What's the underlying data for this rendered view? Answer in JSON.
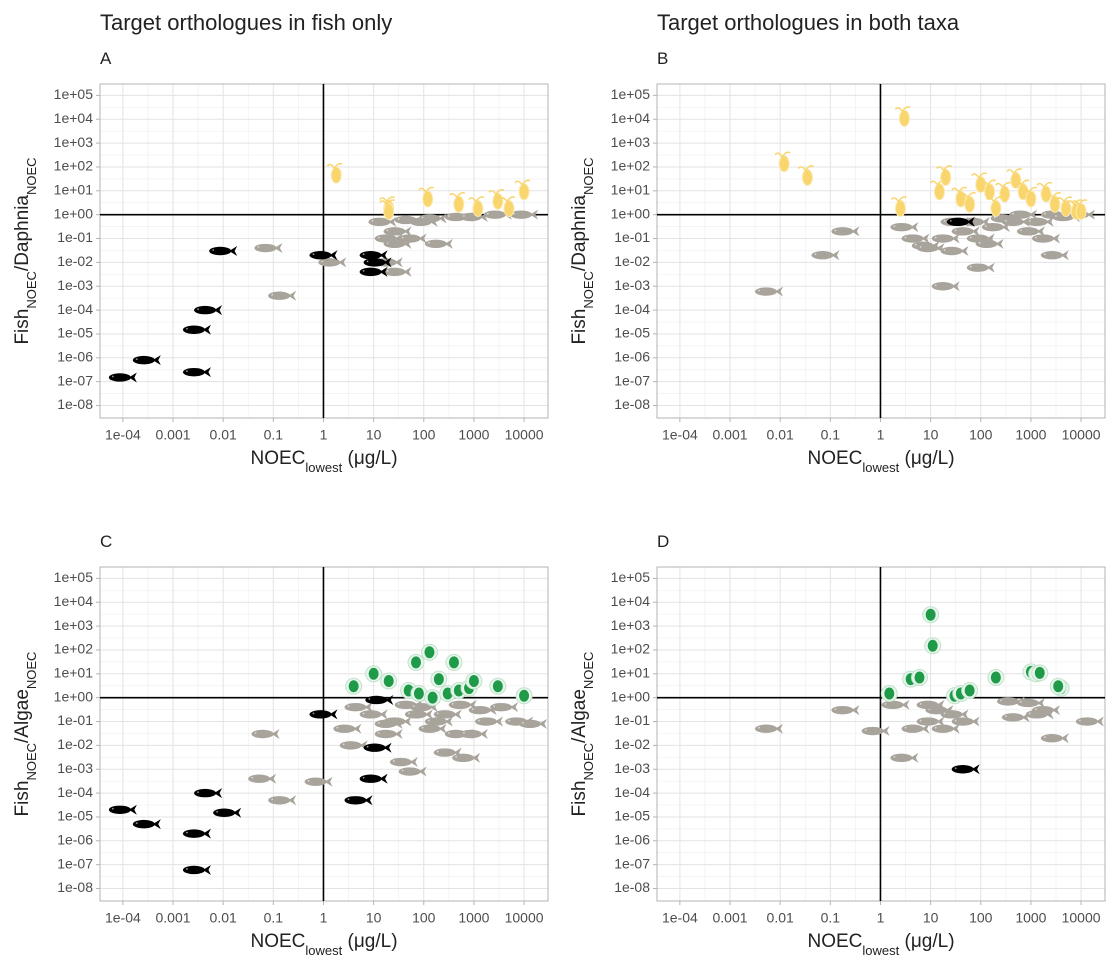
{
  "column_titles": [
    "Target orthologues in fish only",
    "Target orthologues in both taxa"
  ],
  "chart_data": [
    {
      "type": "scatter",
      "panel_label": "A",
      "xlabel": [
        {
          "text": "NOEC"
        },
        {
          "text": "lowest",
          "sub": true
        },
        {
          "text": " (μg/L)"
        }
      ],
      "ylabel": [
        {
          "text": "Fish"
        },
        {
          "text": "NOEC",
          "sub": true
        },
        {
          "text": "/Daphnia"
        },
        {
          "text": "NOEC",
          "sub": true
        }
      ],
      "xlog": true,
      "ylog": true,
      "xlim": [
        3.5e-05,
        30000
      ],
      "ylim": [
        3e-09,
        300000
      ],
      "xticks": [
        {
          "value": 0.0001,
          "label": "1e-04"
        },
        0.001,
        0.01,
        0.1,
        1,
        10,
        100,
        1000,
        10000
      ],
      "yticks": [
        {
          "value": 1e-08,
          "label": "1e-08"
        },
        {
          "value": 1e-07,
          "label": "1e-07"
        },
        {
          "value": 1e-06,
          "label": "1e-06"
        },
        {
          "value": 1e-05,
          "label": "1e-05"
        },
        {
          "value": 0.0001,
          "label": "1e-04"
        },
        {
          "value": 0.001,
          "label": "1e-03"
        },
        {
          "value": 0.01,
          "label": "1e-02"
        },
        {
          "value": 0.1,
          "label": "1e-01"
        },
        {
          "value": 1,
          "label": "1e+00"
        },
        {
          "value": 10,
          "label": "1e+01"
        },
        {
          "value": 100,
          "label": "1e+02"
        },
        {
          "value": 1000,
          "label": "1e+03"
        },
        {
          "value": 10000,
          "label": "1e+04"
        },
        {
          "value": 100000,
          "label": "1e+05"
        }
      ],
      "grid": true,
      "minor_grid": true,
      "refline_x": 1,
      "refline_y": 1,
      "series": [
        {
          "marker": "fish",
          "color": "#a8a49c",
          "x": [
            0.08,
            1.5,
            0.15,
            20,
            30,
            30,
            100,
            200,
            15,
            50,
            150,
            500,
            1000,
            3000,
            10000,
            30,
            20,
            60
          ],
          "values": [
            0.04,
            0.01,
            0.0004,
            0.01,
            0.004,
            0.06,
            0.5,
            0.06,
            0.5,
            0.6,
            0.7,
            0.8,
            0.8,
            1,
            1,
            0.2,
            0.1,
            0.1
          ]
        },
        {
          "marker": "fish",
          "color": "#000000",
          "x": [
            0.01,
            1,
            10,
            12,
            10,
            0.005,
            0.003,
            0.0003,
            0.003,
            0.0001
          ],
          "values": [
            0.03,
            0.02,
            0.02,
            0.01,
            0.004,
            0.0001,
            1.5e-05,
            8e-07,
            2.5e-07,
            1.5e-07
          ]
        },
        {
          "marker": "daphnia",
          "color": "#f9d56e",
          "x": [
            1.8,
            20,
            20,
            120,
            500,
            1200,
            3000,
            5000,
            10000
          ],
          "values": [
            50,
            2,
            1.5,
            5,
            3,
            2,
            4,
            2,
            10
          ]
        }
      ]
    },
    {
      "type": "scatter",
      "panel_label": "B",
      "xlabel": [
        {
          "text": "NOEC"
        },
        {
          "text": "lowest",
          "sub": true
        },
        {
          "text": " (μg/L)"
        }
      ],
      "ylabel": [
        {
          "text": "Fish"
        },
        {
          "text": "NOEC",
          "sub": true
        },
        {
          "text": "/Daphnia"
        },
        {
          "text": "NOEC",
          "sub": true
        }
      ],
      "xlog": true,
      "ylog": true,
      "xlim": [
        3.5e-05,
        30000
      ],
      "ylim": [
        3e-09,
        300000
      ],
      "xticks": [
        {
          "value": 0.0001,
          "label": "1e-04"
        },
        0.001,
        0.01,
        0.1,
        1,
        10,
        100,
        1000,
        10000
      ],
      "yticks": [
        {
          "value": 1e-08,
          "label": "1e-08"
        },
        {
          "value": 1e-07,
          "label": "1e-07"
        },
        {
          "value": 1e-06,
          "label": "1e-06"
        },
        {
          "value": 1e-05,
          "label": "1e-05"
        },
        {
          "value": 0.0001,
          "label": "1e-04"
        },
        {
          "value": 0.001,
          "label": "1e-03"
        },
        {
          "value": 0.01,
          "label": "1e-02"
        },
        {
          "value": 0.1,
          "label": "1e-01"
        },
        {
          "value": 1,
          "label": "1e+00"
        },
        {
          "value": 10,
          "label": "1e+01"
        },
        {
          "value": 100,
          "label": "1e+02"
        },
        {
          "value": 1000,
          "label": "1e+03"
        },
        {
          "value": 10000,
          "label": "1e+04"
        },
        {
          "value": 100000,
          "label": "1e+05"
        }
      ],
      "grid": true,
      "minor_grid": true,
      "refline_x": 1,
      "refline_y": 1,
      "series": [
        {
          "marker": "fish",
          "color": "#a8a49c",
          "x": [
            0.006,
            0.08,
            0.2,
            20,
            100,
            3000,
            3,
            5,
            8,
            10,
            20,
            30,
            50,
            80,
            100,
            200,
            300,
            500,
            1000,
            1500,
            2000,
            3000,
            5000,
            10000,
            30,
            150,
            700
          ],
          "values": [
            0.0006,
            0.02,
            0.2,
            0.001,
            0.006,
            0.02,
            0.3,
            0.1,
            0.05,
            0.04,
            0.1,
            0.03,
            0.2,
            0.5,
            0.1,
            0.3,
            0.7,
            0.5,
            0.2,
            0.5,
            0.1,
            1,
            0.8,
            1,
            0.5,
            0.06,
            1
          ]
        },
        {
          "marker": "fish",
          "color": "#000000",
          "x": [
            40
          ],
          "values": [
            0.5
          ]
        },
        {
          "marker": "daphnia",
          "color": "#f9d56e",
          "x": [
            3,
            0.012,
            0.035,
            2.5,
            15,
            20,
            40,
            60,
            100,
            150,
            300,
            500,
            700,
            1000,
            2000,
            3000,
            5000,
            8000,
            10000,
            200
          ],
          "values": [
            12000,
            150,
            40,
            2,
            10,
            40,
            5,
            3,
            20,
            10,
            8,
            30,
            10,
            5,
            8,
            3,
            2,
            1.5,
            1.5,
            2
          ]
        }
      ]
    },
    {
      "type": "scatter",
      "panel_label": "C",
      "xlabel": [
        {
          "text": "NOEC"
        },
        {
          "text": "lowest",
          "sub": true
        },
        {
          "text": " (μg/L)"
        }
      ],
      "ylabel": [
        {
          "text": "Fish"
        },
        {
          "text": "NOEC",
          "sub": true
        },
        {
          "text": "/Algae"
        },
        {
          "text": "NOEC",
          "sub": true
        }
      ],
      "xlog": true,
      "ylog": true,
      "xlim": [
        3.5e-05,
        30000
      ],
      "ylim": [
        3e-09,
        300000
      ],
      "xticks": [
        {
          "value": 0.0001,
          "label": "1e-04"
        },
        0.001,
        0.01,
        0.1,
        1,
        10,
        100,
        1000,
        10000
      ],
      "yticks": [
        {
          "value": 1e-08,
          "label": "1e-08"
        },
        {
          "value": 1e-07,
          "label": "1e-07"
        },
        {
          "value": 1e-06,
          "label": "1e-06"
        },
        {
          "value": 1e-05,
          "label": "1e-05"
        },
        {
          "value": 0.0001,
          "label": "1e-04"
        },
        {
          "value": 0.001,
          "label": "1e-03"
        },
        {
          "value": 0.01,
          "label": "1e-02"
        },
        {
          "value": 0.1,
          "label": "1e-01"
        },
        {
          "value": 1,
          "label": "1e+00"
        },
        {
          "value": 10,
          "label": "1e+01"
        },
        {
          "value": 100,
          "label": "1e+02"
        },
        {
          "value": 1000,
          "label": "1e+03"
        },
        {
          "value": 10000,
          "label": "1e+04"
        },
        {
          "value": 100000,
          "label": "1e+05"
        }
      ],
      "grid": true,
      "minor_grid": true,
      "refline_x": 1,
      "refline_y": 1,
      "series": [
        {
          "marker": "fish",
          "color": "#a8a49c",
          "x": [
            0.07,
            0.06,
            0.15,
            0.8,
            5,
            3,
            4,
            20,
            30,
            50,
            80,
            100,
            150,
            200,
            300,
            500,
            40,
            60,
            300,
            700,
            1000,
            1500,
            2000,
            4000,
            8000,
            15000,
            600,
            20,
            10
          ],
          "values": [
            0.03,
            0.0004,
            5e-05,
            0.0003,
            0.4,
            0.05,
            0.01,
            0.03,
            0.1,
            0.5,
            0.2,
            0.4,
            0.05,
            0.1,
            0.2,
            0.03,
            0.002,
            0.0008,
            0.005,
            0.003,
            0.03,
            0.3,
            0.1,
            0.4,
            0.1,
            0.08,
            0.5,
            0.08,
            0.2
          ]
        },
        {
          "marker": "fish",
          "color": "#000000",
          "x": [
            1,
            13,
            12,
            10,
            5,
            0.005,
            0.012,
            0.0001,
            0.0003,
            0.003,
            0.003
          ],
          "values": [
            0.2,
            0.8,
            0.008,
            0.0004,
            5e-05,
            0.0001,
            1.5e-05,
            2e-05,
            5e-06,
            2e-06,
            6e-08
          ]
        },
        {
          "marker": "algae",
          "color": "#1f9a48",
          "x": [
            4,
            10,
            20,
            70,
            130,
            200,
            400,
            50,
            80,
            150,
            300,
            500,
            800,
            1000,
            3000,
            10000
          ],
          "values": [
            3,
            10,
            5,
            30,
            80,
            6,
            30,
            2,
            1.5,
            1,
            1.5,
            2,
            2.5,
            5,
            3,
            1.2
          ]
        }
      ]
    },
    {
      "type": "scatter",
      "panel_label": "D",
      "xlabel": [
        {
          "text": "NOEC"
        },
        {
          "text": "lowest",
          "sub": true
        },
        {
          "text": " (μg/L)"
        }
      ],
      "ylabel": [
        {
          "text": "Fish"
        },
        {
          "text": "NOEC",
          "sub": true
        },
        {
          "text": "/Algae"
        },
        {
          "text": "NOEC",
          "sub": true
        }
      ],
      "xlog": true,
      "ylog": true,
      "xlim": [
        3.5e-05,
        30000
      ],
      "ylim": [
        3e-09,
        300000
      ],
      "xticks": [
        {
          "value": 0.0001,
          "label": "1e-04"
        },
        0.001,
        0.01,
        0.1,
        1,
        10,
        100,
        1000,
        10000
      ],
      "yticks": [
        {
          "value": 1e-08,
          "label": "1e-08"
        },
        {
          "value": 1e-07,
          "label": "1e-07"
        },
        {
          "value": 1e-06,
          "label": "1e-06"
        },
        {
          "value": 1e-05,
          "label": "1e-05"
        },
        {
          "value": 0.0001,
          "label": "1e-04"
        },
        {
          "value": 0.001,
          "label": "1e-03"
        },
        {
          "value": 0.01,
          "label": "1e-02"
        },
        {
          "value": 0.1,
          "label": "1e-01"
        },
        {
          "value": 1,
          "label": "1e+00"
        },
        {
          "value": 10,
          "label": "1e+01"
        },
        {
          "value": 100,
          "label": "1e+02"
        },
        {
          "value": 1000,
          "label": "1e+03"
        },
        {
          "value": 10000,
          "label": "1e+04"
        },
        {
          "value": 100000,
          "label": "1e+05"
        }
      ],
      "grid": true,
      "minor_grid": true,
      "refline_x": 1,
      "refline_y": 1,
      "series": [
        {
          "marker": "fish",
          "color": "#a8a49c",
          "x": [
            0.006,
            0.2,
            0.8,
            2,
            3,
            5,
            10,
            15,
            20,
            30,
            50,
            400,
            500,
            1500,
            2000,
            3000,
            15000,
            10,
            1000
          ],
          "values": [
            0.05,
            0.3,
            0.04,
            0.5,
            0.003,
            0.05,
            0.1,
            0.3,
            0.05,
            0.2,
            0.1,
            0.7,
            0.15,
            0.2,
            0.3,
            0.02,
            0.1,
            0.5,
            0.6
          ]
        },
        {
          "marker": "fish",
          "color": "#000000",
          "x": [
            50
          ],
          "values": [
            0.001
          ]
        },
        {
          "marker": "algae",
          "color": "#1f9a48",
          "x": [
            10,
            11,
            1.5,
            4,
            6,
            30,
            40,
            60,
            200,
            1000,
            1300,
            1500,
            4000,
            3500
          ],
          "values": [
            3000,
            150,
            1.5,
            6,
            7,
            1.2,
            1.5,
            2,
            7,
            12,
            10,
            11,
            2.5,
            3
          ]
        }
      ]
    }
  ]
}
